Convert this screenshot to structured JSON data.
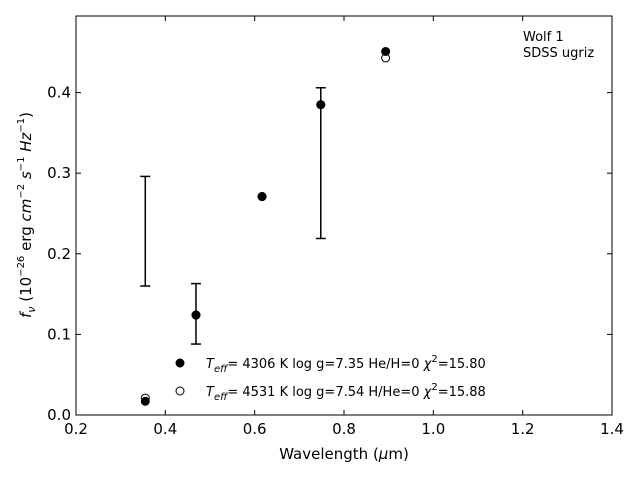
{
  "chart_data": {
    "type": "scatter",
    "xlabel_prefix": "Wavelength (",
    "xlabel_mu": "μ",
    "xlabel_suffix": "m)",
    "ylabel_f": "f",
    "ylabel_sub": "ν",
    "ylabel_open": " (10",
    "ylabel_exp1": "−26",
    "ylabel_erg": " erg ",
    "ylabel_cm": "cm",
    "ylabel_exp2": "−2",
    "ylabel_s": " s",
    "ylabel_exp3": "−1",
    "ylabel_hz": " Hz",
    "ylabel_exp4": "−1",
    "ylabel_close": ")",
    "xlim": [
      0.2,
      1.4
    ],
    "ylim": [
      0.0,
      0.495
    ],
    "xticks": [
      0.2,
      0.4,
      0.6,
      0.8,
      1.0,
      1.2,
      1.4
    ],
    "xtick_labels": [
      "0.2",
      "0.4",
      "0.6",
      "0.8",
      "1.0",
      "1.2",
      "1.4"
    ],
    "yticks": [
      0.0,
      0.1,
      0.2,
      0.3,
      0.4
    ],
    "ytick_labels": [
      "0.0",
      "0.1",
      "0.2",
      "0.3",
      "0.4"
    ],
    "grid": false,
    "annotation_lines": [
      "Wolf 1",
      "SDSS ugriz"
    ],
    "errorbars": [
      {
        "x": 0.3551,
        "low": 0.16,
        "high": 0.296
      },
      {
        "x": 0.4686,
        "low": 0.088,
        "high": 0.163
      },
      {
        "x": 0.748,
        "low": 0.219,
        "high": 0.406
      }
    ],
    "series": [
      {
        "marker": "filled-circle",
        "x": [
          0.3551,
          0.4686,
          0.6166,
          0.748,
          0.8932
        ],
        "y": [
          0.017,
          0.124,
          0.271,
          0.385,
          0.451
        ],
        "legend": {
          "T": "T",
          "Tsub": "eff",
          "rest1": "=  4306 K  log g=7.35  He/H=0  ",
          "chi": "χ",
          "chi_exp": "2",
          "rest2": "=15.80"
        }
      },
      {
        "marker": "open-circle",
        "x": [
          0.3551,
          0.4686,
          0.6166,
          0.748,
          0.8932
        ],
        "y": [
          0.021,
          0.124,
          0.271,
          0.385,
          0.443
        ],
        "legend": {
          "T": "T",
          "Tsub": "eff",
          "rest1": "=  4531 K  log g=7.54  H/He=0  ",
          "chi": "χ",
          "chi_exp": "2",
          "rest2": "=15.88"
        }
      }
    ],
    "legend_placement": "lower-center"
  }
}
